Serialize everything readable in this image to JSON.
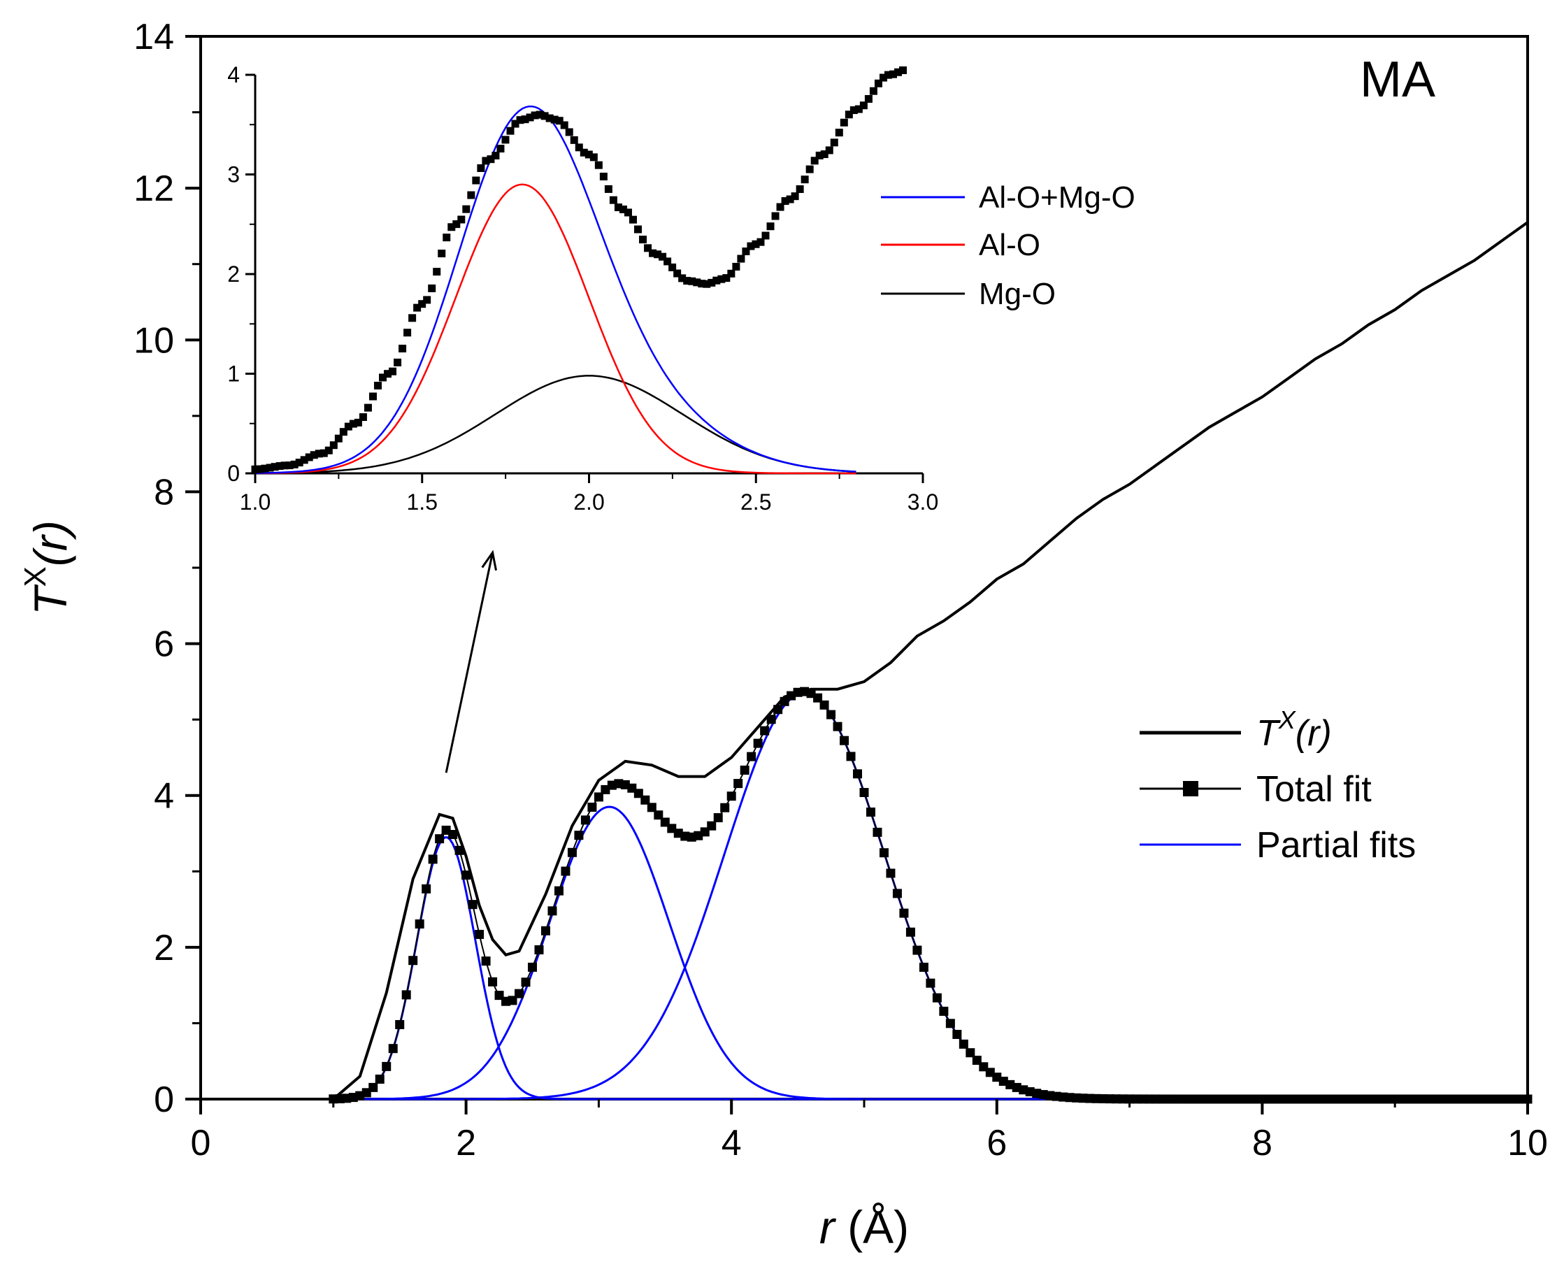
{
  "chart_data": [
    {
      "type": "line",
      "id": "main",
      "ylabel_main": "T",
      "ylabel_super": "X",
      "ylabel_paren": "(r)",
      "xlabel_var": "r",
      "xlabel_unit": " (Å)",
      "xlim": [
        0,
        10
      ],
      "ylim": [
        0,
        14
      ],
      "xticks": [
        0,
        2,
        4,
        6,
        8,
        10
      ],
      "yticks": [
        0,
        2,
        4,
        6,
        8,
        10,
        12,
        14
      ],
      "annotation": "MA",
      "legend_position": "lower-right",
      "legend": [
        {
          "main": "T",
          "super": "X",
          "rest": "(r)",
          "italic": true,
          "color": "#000000",
          "style": "line"
        },
        {
          "main": "Total fit",
          "super": "",
          "rest": "",
          "italic": false,
          "color": "#000000",
          "style": "line-square"
        },
        {
          "main": "Partial fits",
          "super": "",
          "rest": "",
          "italic": false,
          "color": "#0000ff",
          "style": "line"
        }
      ],
      "series": [
        {
          "name": "TX(r)",
          "color": "#000000",
          "x": [
            0,
            1.0,
            1.2,
            1.4,
            1.6,
            1.8,
            1.9,
            2.0,
            2.1,
            2.2,
            2.3,
            2.4,
            2.6,
            2.8,
            3.0,
            3.2,
            3.4,
            3.6,
            3.8,
            4.0,
            4.2,
            4.4,
            4.6,
            4.8,
            5.0,
            5.2,
            5.4,
            5.6,
            5.8,
            6.0,
            6.2,
            6.4,
            6.6,
            6.8,
            7.0,
            7.2,
            7.4,
            7.6,
            7.8,
            8.0,
            8.2,
            8.4,
            8.6,
            8.8,
            9.0,
            9.2,
            9.4,
            9.6,
            9.8,
            10.0
          ],
          "y": [
            0,
            0.0,
            0.3,
            1.4,
            2.9,
            3.75,
            3.7,
            3.2,
            2.55,
            2.1,
            1.9,
            1.95,
            2.7,
            3.6,
            4.2,
            4.45,
            4.4,
            4.25,
            4.25,
            4.5,
            4.9,
            5.3,
            5.4,
            5.4,
            5.5,
            5.75,
            6.1,
            6.3,
            6.55,
            6.85,
            7.05,
            7.35,
            7.65,
            7.9,
            8.1,
            8.35,
            8.6,
            8.85,
            9.05,
            9.25,
            9.5,
            9.75,
            9.95,
            10.2,
            10.4,
            10.65,
            10.85,
            11.05,
            11.3,
            11.55
          ]
        },
        {
          "name": "Total fit",
          "color": "#000000",
          "peaks": [
            {
              "a": 3.45,
              "c": 1.85,
              "s": 0.22
            },
            {
              "a": 3.85,
              "c": 3.08,
              "s": 0.45
            },
            {
              "a": 5.35,
              "c": 4.55,
              "s": 0.6
            }
          ],
          "xrange": [
            1.0,
            10.0
          ]
        },
        {
          "name": "Partial fit 1",
          "color": "#0000ff",
          "peaks": [
            {
              "a": 3.45,
              "c": 1.85,
              "s": 0.22
            }
          ],
          "xrange": [
            1.0,
            10.0
          ]
        },
        {
          "name": "Partial fit 2",
          "color": "#0000ff",
          "peaks": [
            {
              "a": 3.85,
              "c": 3.08,
              "s": 0.45
            }
          ],
          "xrange": [
            1.0,
            10.0
          ]
        },
        {
          "name": "Partial fit 3",
          "color": "#0000ff",
          "peaks": [
            {
              "a": 5.35,
              "c": 4.55,
              "s": 0.6
            }
          ],
          "xrange": [
            1.0,
            10.0
          ]
        }
      ],
      "arrow": {
        "from": [
          1.85,
          4.3
        ],
        "to": [
          2.2,
          7.2
        ]
      }
    },
    {
      "type": "line",
      "id": "inset",
      "xlim": [
        1.0,
        3.0
      ],
      "ylim": [
        0,
        4
      ],
      "xticks": [
        1.0,
        1.5,
        2.0,
        2.5,
        3.0
      ],
      "xtick_labels": [
        "1.0",
        "1.5",
        "2.0",
        "2.5",
        "3.0"
      ],
      "yticks": [
        0,
        1,
        2,
        3,
        4
      ],
      "legend_position": "upper-right",
      "legend": [
        {
          "label": "Al-O+Mg-O",
          "color": "#0000ff"
        },
        {
          "label": "Al-O",
          "color": "#ff0000"
        },
        {
          "label": "Mg-O",
          "color": "#000000"
        }
      ],
      "series": [
        {
          "name": "Al-O+Mg-O",
          "color": "#0000ff",
          "peaks": [
            {
              "a": 2.9,
              "c": 1.8,
              "s": 0.2
            },
            {
              "a": 0.98,
              "c": 2.0,
              "s": 0.28
            }
          ],
          "xrange": [
            1.0,
            2.8
          ]
        },
        {
          "name": "Al-O",
          "color": "#ff0000",
          "peaks": [
            {
              "a": 2.9,
              "c": 1.8,
              "s": 0.2
            }
          ],
          "xrange": [
            1.0,
            2.8
          ]
        },
        {
          "name": "Mg-O",
          "color": "#000000",
          "peaks": [
            {
              "a": 0.98,
              "c": 2.0,
              "s": 0.28
            }
          ],
          "xrange": [
            1.0,
            2.8
          ]
        },
        {
          "name": "Total fit",
          "color": "#000000",
          "marker": "square",
          "x": [
            1.0,
            1.1,
            1.2,
            1.3,
            1.4,
            1.5,
            1.6,
            1.7,
            1.8,
            1.85,
            1.9,
            2.0,
            2.1,
            2.2,
            2.3,
            2.35,
            2.4,
            2.5,
            2.6,
            2.7,
            2.8,
            2.9,
            2.95
          ],
          "y": [
            0.04,
            0.08,
            0.2,
            0.5,
            1.0,
            1.7,
            2.5,
            3.15,
            3.55,
            3.6,
            3.55,
            3.2,
            2.65,
            2.2,
            1.93,
            1.9,
            1.95,
            2.3,
            2.75,
            3.2,
            3.65,
            4.0,
            4.05
          ]
        }
      ]
    }
  ]
}
